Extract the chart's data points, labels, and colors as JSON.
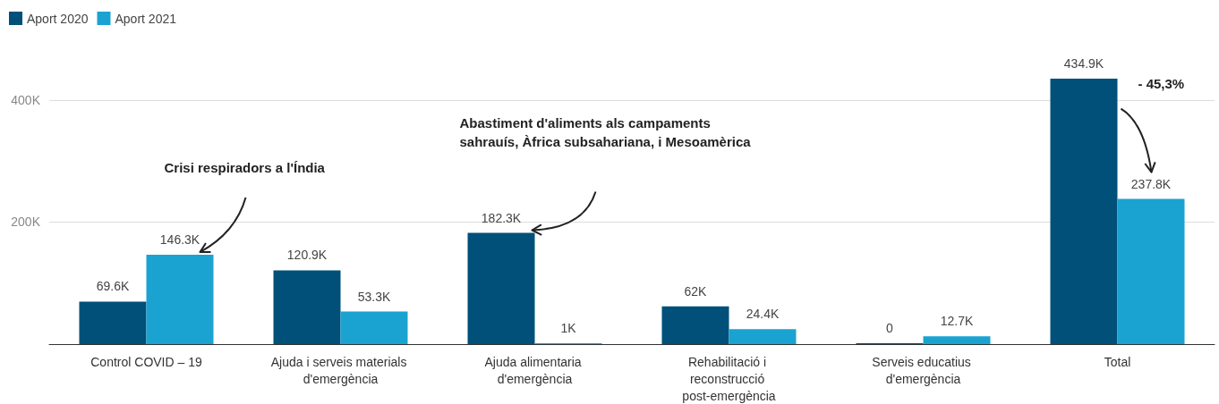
{
  "chart_data": {
    "type": "bar",
    "categories": [
      "Control COVID – 19",
      "Ajuda i serveis materials d'emergència",
      "Ajuda alimentaria d'emergència",
      "Rehabilitació i reconstrucció post-emergència",
      "Serveis educatius d'emergència",
      "Total"
    ],
    "series": [
      {
        "name": "Aport 2020",
        "color": "#00507a",
        "values": [
          69600,
          120900,
          182300,
          62000,
          0,
          434900
        ],
        "value_labels": [
          "69.6K",
          "120.9K",
          "182.3K",
          "62K",
          "0",
          "434.9K"
        ]
      },
      {
        "name": "Aport 2021",
        "color": "#1aa3d1",
        "values": [
          146300,
          53300,
          1000,
          24400,
          12700,
          237800
        ],
        "value_labels": [
          "146.3K",
          "53.3K",
          "1K",
          "24.4K",
          "12.7K",
          "237.8K"
        ]
      }
    ],
    "ylim": [
      0,
      434900
    ],
    "yticks": [
      {
        "value": 0,
        "label": null
      },
      {
        "value": 200000,
        "label": "200K"
      },
      {
        "value": 400000,
        "label": "400K"
      }
    ],
    "grid": "y",
    "legend": "top left",
    "annotations": [
      "Crisi respiradors a l'Índia",
      "Abastiment d'aliments als campaments sahrauís, Àfrica subsahariana, i Mesoamèrica",
      "- 45,3%"
    ]
  }
}
